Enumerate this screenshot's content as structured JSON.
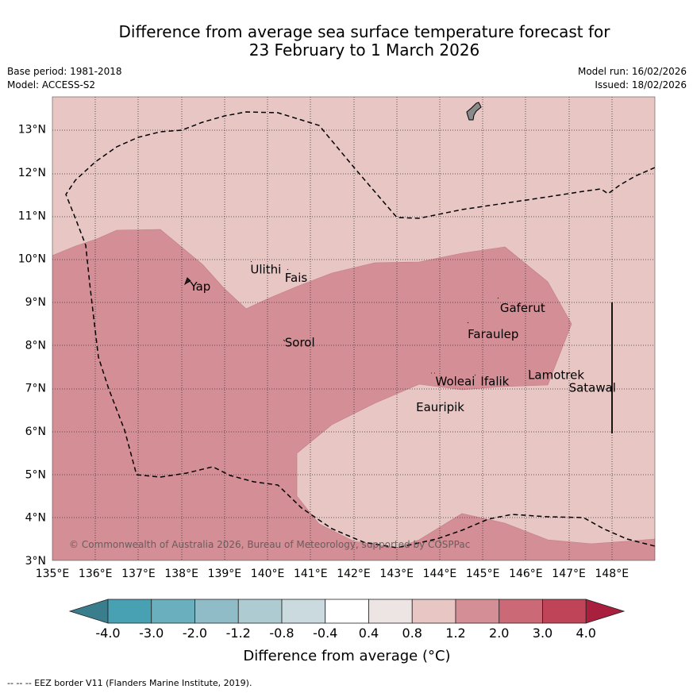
{
  "title": {
    "line1": "Difference from average sea surface temperature forecast for",
    "line2": "23 February to 1 March 2026"
  },
  "meta": {
    "base_period": "Base period: 1981-2018",
    "model": "Model: ACCESS-S2",
    "model_run": "Model run: 16/02/2026",
    "issued": "Issued: 18/02/2026"
  },
  "map": {
    "lon_ticks": [
      "135°E",
      "136°E",
      "137°E",
      "138°E",
      "139°E",
      "140°E",
      "141°E",
      "142°E",
      "143°E",
      "144°E",
      "145°E",
      "146°E",
      "147°E",
      "148°E"
    ],
    "lat_ticks": [
      "3°N",
      "4°N",
      "5°N",
      "6°N",
      "7°N",
      "8°N",
      "9°N",
      "10°N",
      "11°N",
      "12°N",
      "13°N"
    ],
    "places": [
      {
        "name": "Yap",
        "lon": 138.2,
        "lat": 9.35
      },
      {
        "name": "Ulithi",
        "lon": 139.6,
        "lat": 9.75
      },
      {
        "name": "Fais",
        "lon": 140.4,
        "lat": 9.55
      },
      {
        "name": "Gaferut",
        "lon": 145.4,
        "lat": 8.85
      },
      {
        "name": "Faraulep",
        "lon": 144.65,
        "lat": 8.25
      },
      {
        "name": "Sorol",
        "lon": 140.4,
        "lat": 8.05
      },
      {
        "name": "Woleai",
        "lon": 143.9,
        "lat": 7.15
      },
      {
        "name": "Ifalik",
        "lon": 144.95,
        "lat": 7.15
      },
      {
        "name": "Lamotrek",
        "lon": 146.05,
        "lat": 7.3
      },
      {
        "name": "Satawal",
        "lon": 147.0,
        "lat": 7.0
      },
      {
        "name": "Eauripik",
        "lon": 143.45,
        "lat": 6.55
      }
    ],
    "copyright": "© Commonwealth of Australia 2026, Bureau of Meteorology, supported by COSPPac",
    "region_colors": {
      "band_0_8_to_1_2": "#e7c6c4",
      "band_1_2_to_2_0": "#d48e96",
      "land": "#8a8a8a"
    }
  },
  "colorbar": {
    "title": "Difference from average (°C)",
    "tick_labels": [
      "-4.0",
      "-3.0",
      "-2.0",
      "-1.2",
      "-0.8",
      "-0.4",
      "0.4",
      "0.8",
      "1.2",
      "2.0",
      "3.0",
      "4.0"
    ],
    "colors": [
      "#3a7d8c",
      "#47a1b2",
      "#6aafbd",
      "#8fbcc7",
      "#aecbd2",
      "#cadadf",
      "#ffffff",
      "#ede5e4",
      "#e7c6c4",
      "#d48e96",
      "#cb6a76",
      "#bf4457",
      "#a8203e"
    ]
  },
  "footnote": "--  --  -- EEZ border V11 (Flanders Marine Institute, 2019)."
}
